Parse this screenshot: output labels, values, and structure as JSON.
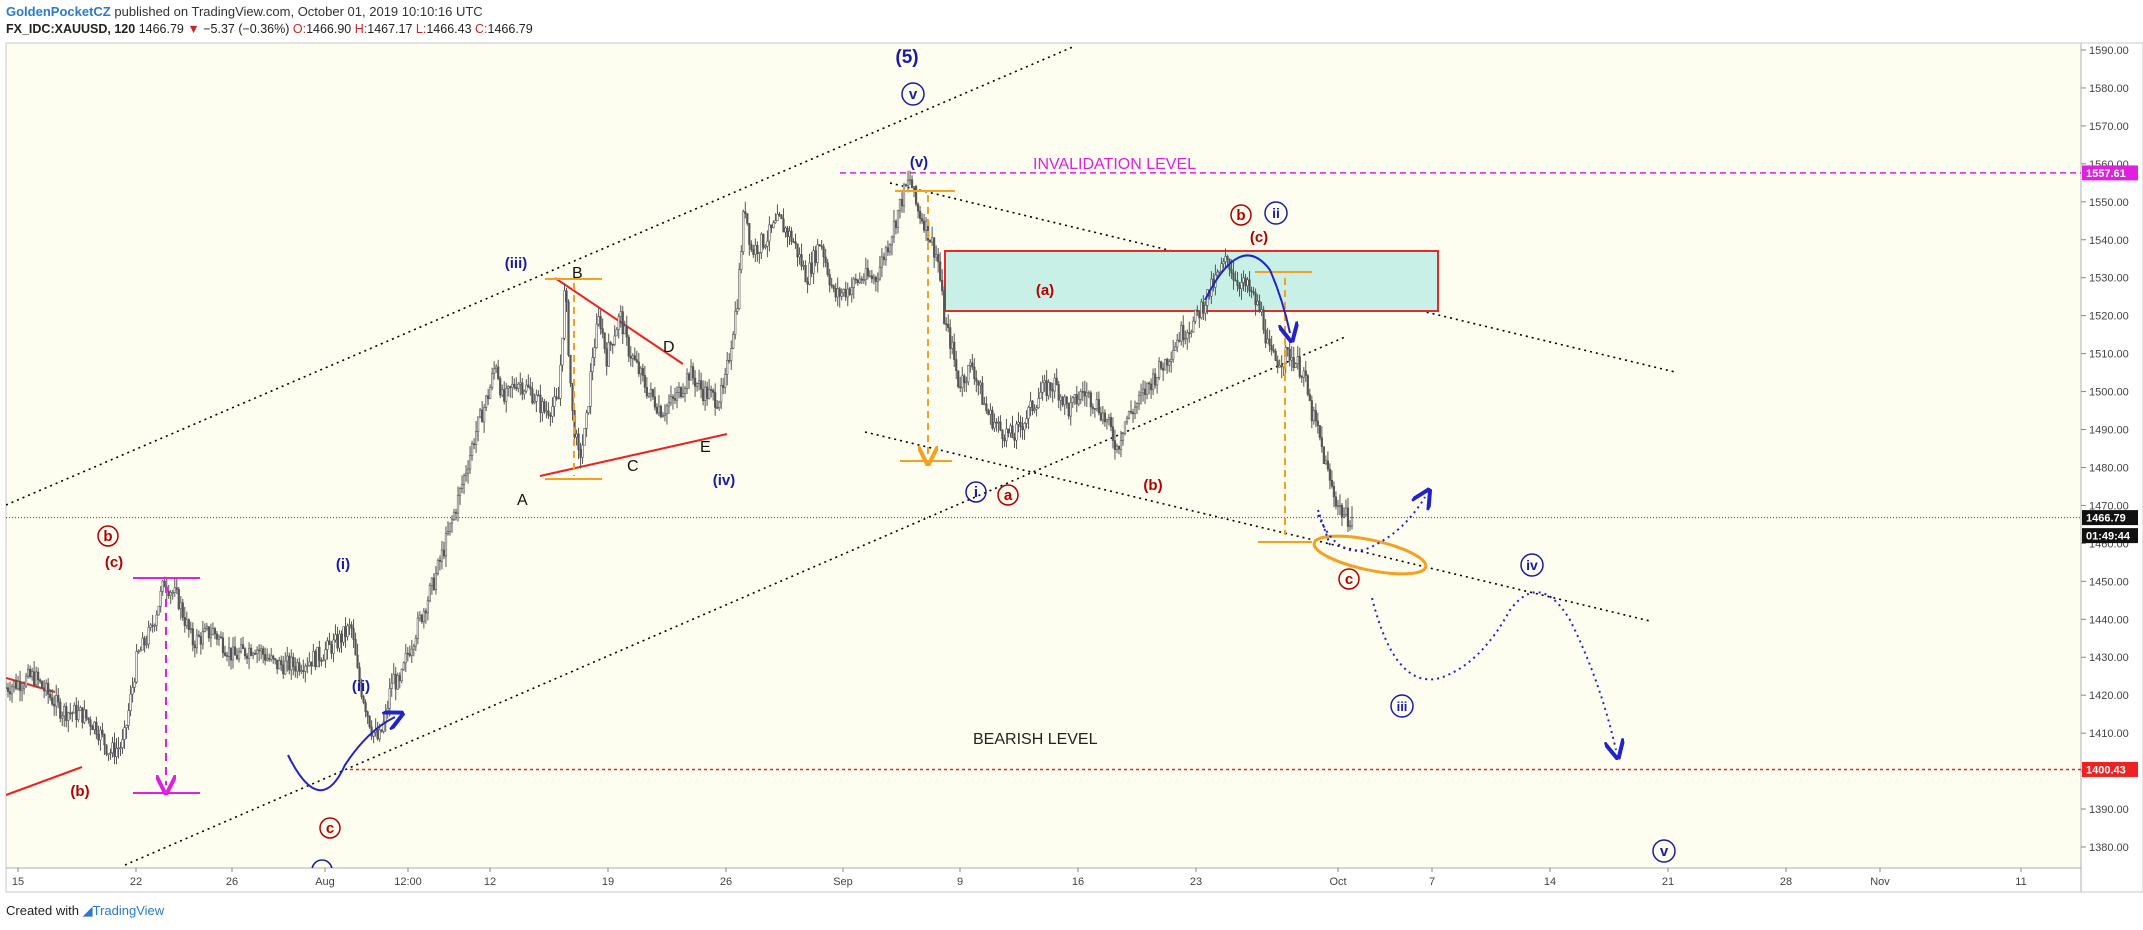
{
  "header": {
    "author": "GoldenPocketCZ",
    "published": "published on TradingView.com, October 01, 2019 10:10:16 UTC",
    "symbol": "FX_IDC:XAUUSD, 120",
    "last": "1466.79",
    "change": "−5.37 (−0.36%)",
    "o_label": "O:",
    "o": "1466.90",
    "h_label": "H:",
    "h": "1467.17",
    "l_label": "L:",
    "l": "1466.43",
    "c_label": "C:",
    "c": "1466.79"
  },
  "footer": {
    "created": "Created with",
    "brand": "TradingView"
  },
  "colors": {
    "background": "#fdfdf0",
    "candle": "#555555",
    "wave_red": "#b30000",
    "wave_blue": "#1a1aa8",
    "magenta": "#e020e0",
    "orange": "#f5a020",
    "red_line": "#ee2222",
    "blue_path": "#2222cc",
    "box_fill": "#c8f0e6"
  },
  "chart_data": {
    "type": "candlestick",
    "interval": "120",
    "symbol": "FX_IDC:XAUUSD",
    "ylim": [
      1375,
      1595
    ],
    "yticks": [
      1380,
      1390,
      1400,
      1410,
      1420,
      1430,
      1440,
      1450,
      1460,
      1470,
      1480,
      1490,
      1500,
      1510,
      1520,
      1530,
      1540,
      1550,
      1560,
      1570,
      1580,
      1590
    ],
    "x_tick_labels": [
      "15",
      "22",
      "26",
      "Aug",
      "12:00",
      "12",
      "19",
      "26",
      "Sep",
      "9",
      "16",
      "23",
      "Oct",
      "7",
      "14",
      "21",
      "28",
      "Nov",
      "11"
    ],
    "close_path": [
      [
        0,
        1422
      ],
      [
        4,
        1425
      ],
      [
        8,
        1416
      ],
      [
        11,
        1415
      ],
      [
        13,
        1412
      ],
      [
        15,
        1405
      ],
      [
        17,
        1407
      ],
      [
        19,
        1430
      ],
      [
        21,
        1437
      ],
      [
        23,
        1450
      ],
      [
        25,
        1445
      ],
      [
        27,
        1434
      ],
      [
        30,
        1437
      ],
      [
        33,
        1430
      ],
      [
        36,
        1433
      ],
      [
        39,
        1428
      ],
      [
        42,
        1428
      ],
      [
        45,
        1430
      ],
      [
        48,
        1434
      ],
      [
        50,
        1438
      ],
      [
        51,
        1425
      ],
      [
        52,
        1418
      ],
      [
        53,
        1411
      ],
      [
        54,
        1408
      ],
      [
        55,
        1414
      ],
      [
        56,
        1425
      ],
      [
        57,
        1422
      ],
      [
        58,
        1430
      ],
      [
        60,
        1440
      ],
      [
        62,
        1450
      ],
      [
        64,
        1462
      ],
      [
        66,
        1475
      ],
      [
        68,
        1489
      ],
      [
        70,
        1500
      ],
      [
        71,
        1508
      ],
      [
        72,
        1497
      ],
      [
        74,
        1503
      ],
      [
        76,
        1500
      ],
      [
        78,
        1495
      ],
      [
        80,
        1497
      ],
      [
        81,
        1528
      ],
      [
        82,
        1495
      ],
      [
        83,
        1482
      ],
      [
        84,
        1490
      ],
      [
        85,
        1510
      ],
      [
        86,
        1520
      ],
      [
        87,
        1509
      ],
      [
        88,
        1515
      ],
      [
        89,
        1520
      ],
      [
        90,
        1512
      ],
      [
        91,
        1508
      ],
      [
        93,
        1500
      ],
      [
        95,
        1495
      ],
      [
        97,
        1498
      ],
      [
        99,
        1505
      ],
      [
        101,
        1500
      ],
      [
        103,
        1498
      ],
      [
        104,
        1500
      ],
      [
        106,
        1525
      ],
      [
        107,
        1550
      ],
      [
        108,
        1537
      ],
      [
        110,
        1540
      ],
      [
        112,
        1545
      ],
      [
        114,
        1540
      ],
      [
        116,
        1530
      ],
      [
        118,
        1540
      ],
      [
        120,
        1525
      ],
      [
        122,
        1527
      ],
      [
        124,
        1530
      ],
      [
        126,
        1530
      ],
      [
        128,
        1540
      ],
      [
        130,
        1552
      ],
      [
        131,
        1556
      ],
      [
        132,
        1548
      ],
      [
        133,
        1545
      ],
      [
        135,
        1535
      ],
      [
        136,
        1518
      ],
      [
        137,
        1512
      ],
      [
        138,
        1502
      ],
      [
        140,
        1507
      ],
      [
        142,
        1495
      ],
      [
        144,
        1490
      ],
      [
        146,
        1488
      ],
      [
        148,
        1494
      ],
      [
        150,
        1500
      ],
      [
        152,
        1502
      ],
      [
        154,
        1495
      ],
      [
        156,
        1500
      ],
      [
        158,
        1497
      ],
      [
        160,
        1490
      ],
      [
        161,
        1485
      ],
      [
        162,
        1492
      ],
      [
        164,
        1497
      ],
      [
        166,
        1503
      ],
      [
        168,
        1508
      ],
      [
        170,
        1515
      ],
      [
        172,
        1518
      ],
      [
        174,
        1525
      ],
      [
        176,
        1532
      ],
      [
        177,
        1535
      ],
      [
        178,
        1530
      ],
      [
        180,
        1527
      ],
      [
        182,
        1520
      ],
      [
        183,
        1510
      ],
      [
        184,
        1508
      ],
      [
        186,
        1510
      ],
      [
        188,
        1505
      ],
      [
        189,
        1495
      ],
      [
        190,
        1490
      ],
      [
        191,
        1482
      ],
      [
        192,
        1475
      ],
      [
        193,
        1470
      ],
      [
        194,
        1467
      ],
      [
        195,
        1466.79
      ]
    ],
    "horizontal_levels": [
      {
        "price": 1557.61,
        "label": "1557.61",
        "text": "INVALIDATION LEVEL"
      },
      {
        "price": 1400.43,
        "label": "1400.43",
        "text": "BEARISH LEVEL"
      },
      {
        "price": 1466.79,
        "label": "1466.79",
        "countdown": "01:49:44"
      }
    ],
    "wave_labels_red": [
      "b",
      "(c)",
      "(b)",
      "c",
      "(a)",
      "a",
      "(b)",
      "b",
      "(c)",
      "c"
    ],
    "wave_labels_blue": [
      "(5)",
      "v",
      "(iii)",
      "(iv)",
      "(i)",
      "(ii)",
      "(v)",
      "i",
      "ii",
      "iv",
      "iii",
      "v"
    ],
    "pattern_labels": [
      "A",
      "B",
      "C",
      "D",
      "E"
    ]
  }
}
